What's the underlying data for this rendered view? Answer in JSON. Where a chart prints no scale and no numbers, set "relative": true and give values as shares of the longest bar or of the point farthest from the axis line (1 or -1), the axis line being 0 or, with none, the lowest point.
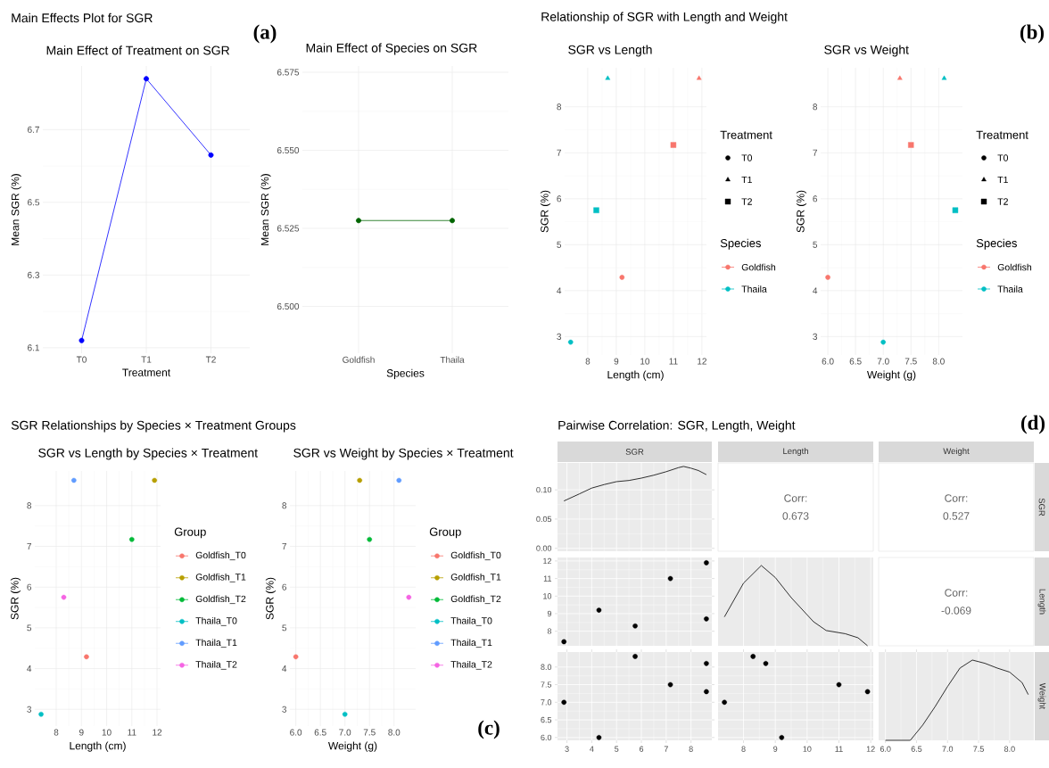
{
  "chart_data": [
    {
      "type": "line",
      "title": "Main Effect of Treatment on SGR",
      "xlabel": "Treatment",
      "ylabel": "Mean SGR (%)",
      "categories": [
        "T0",
        "T1",
        "T2"
      ],
      "values": [
        6.12,
        6.84,
        6.63
      ],
      "color": "#0000ff",
      "marker": "circle",
      "ylim": [
        6.085,
        6.875
      ],
      "yticks": [
        6.1,
        6.3,
        6.5,
        6.7
      ],
      "grid": true,
      "annotations": [
        "Main Effects Plot for SGR",
        "(a)"
      ]
    },
    {
      "type": "line",
      "title": "Main Effect of Species on SGR",
      "xlabel": "Species",
      "ylabel": "Mean SGR (%)",
      "categories": [
        "Goldfish",
        "Thaila"
      ],
      "values": [
        6.5275,
        6.5275
      ],
      "color": "#006400",
      "marker": "circle",
      "ylim": [
        6.485,
        6.577
      ],
      "yticks": [
        {
          "value": 6.5,
          "label": "6.500"
        },
        {
          "value": 6.525,
          "label": "6.525"
        },
        {
          "value": 6.55,
          "label": "6.550"
        },
        {
          "value": 6.575,
          "label": "6.575"
        }
      ],
      "grid": true
    },
    {
      "type": "scatter",
      "title": "SGR vs Length",
      "xlabel": "Length (cm)",
      "ylabel": "SGR (%)",
      "legend": "right",
      "legend_title": "Treatment",
      "series": [
        {
          "marker": "circle",
          "color": "#f8766d",
          "x": [
            9.2
          ],
          "values": [
            4.29
          ]
        },
        {
          "marker": "triangle",
          "color": "#f8766d",
          "x": [
            11.9
          ],
          "values": [
            8.62
          ]
        },
        {
          "marker": "square",
          "color": "#f8766d",
          "x": [
            11.0
          ],
          "values": [
            7.17
          ]
        },
        {
          "marker": "circle",
          "color": "#00bfc4",
          "x": [
            7.4
          ],
          "values": [
            2.88
          ]
        },
        {
          "marker": "triangle",
          "color": "#00bfc4",
          "x": [
            8.7
          ],
          "values": [
            8.62
          ]
        },
        {
          "marker": "square",
          "color": "#00bfc4",
          "x": [
            8.3
          ],
          "values": [
            5.75
          ]
        }
      ],
      "xlim": [
        7.19,
        12.16
      ],
      "xticks": [
        8,
        9,
        10,
        11,
        12
      ],
      "ylim": [
        2.6,
        8.85
      ],
      "yticks": [
        3,
        4,
        5,
        6,
        7,
        8
      ],
      "grid": true,
      "annotations": [
        "Relationship of SGR with Length and Weight",
        "(b)",
        "T0",
        "T1",
        "T2",
        "Species",
        "Goldfish",
        "Thaila"
      ]
    },
    {
      "type": "scatter",
      "title": "SGR vs Weight",
      "xlabel": "Weight (g)",
      "ylabel": "SGR (%)",
      "legend": "right",
      "legend_title": "Treatment",
      "series": [
        {
          "marker": "circle",
          "color": "#f8766d",
          "x": [
            6.0
          ],
          "values": [
            4.29
          ]
        },
        {
          "marker": "triangle",
          "color": "#f8766d",
          "x": [
            7.3
          ],
          "values": [
            8.62
          ]
        },
        {
          "marker": "square",
          "color": "#f8766d",
          "x": [
            7.5
          ],
          "values": [
            7.17
          ]
        },
        {
          "marker": "circle",
          "color": "#00bfc4",
          "x": [
            7.0
          ],
          "values": [
            2.88
          ]
        },
        {
          "marker": "triangle",
          "color": "#00bfc4",
          "x": [
            8.1
          ],
          "values": [
            8.62
          ]
        },
        {
          "marker": "square",
          "color": "#00bfc4",
          "x": [
            8.3
          ],
          "values": [
            5.75
          ]
        }
      ],
      "xlim": [
        5.87,
        8.43
      ],
      "xticks": [
        {
          "value": 6,
          "label": "6.0"
        },
        6.5,
        {
          "value": 7,
          "label": "7.0"
        },
        7.5,
        {
          "value": 8,
          "label": "8.0"
        }
      ],
      "ylim": [
        2.6,
        8.85
      ],
      "yticks": [
        3,
        4,
        5,
        6,
        7,
        8
      ],
      "grid": true,
      "annotations": [
        "T0",
        "T1",
        "T2",
        "Species",
        "Goldfish",
        "Thaila"
      ]
    },
    {
      "type": "scatter",
      "title": "SGR vs Length by Species × Treatment",
      "xlabel": "Length (cm)",
      "ylabel": "SGR (%)",
      "legend": "right",
      "legend_title": "Group",
      "marker": "circle",
      "series": [
        {
          "name": "Goldfish_T0",
          "color": "#f8766d",
          "x": [
            9.2
          ],
          "values": [
            4.29
          ]
        },
        {
          "name": "Goldfish_T1",
          "color": "#b79f00",
          "x": [
            11.9
          ],
          "values": [
            8.62
          ]
        },
        {
          "name": "Goldfish_T2",
          "color": "#00ba38",
          "x": [
            11.0
          ],
          "values": [
            7.17
          ]
        },
        {
          "name": "Thaila_T0",
          "color": "#00bfc4",
          "x": [
            7.4
          ],
          "values": [
            2.88
          ]
        },
        {
          "name": "Thaila_T1",
          "color": "#619cff",
          "x": [
            8.7
          ],
          "values": [
            8.62
          ]
        },
        {
          "name": "Thaila_T2",
          "color": "#f564e3",
          "x": [
            8.3
          ],
          "values": [
            5.75
          ]
        }
      ],
      "xlim": [
        7.15,
        12.14
      ],
      "xticks": [
        8,
        9,
        10,
        11,
        12
      ],
      "ylim": [
        2.59,
        8.85
      ],
      "yticks": [
        3,
        4,
        5,
        6,
        7,
        8
      ],
      "grid": true,
      "annotations": [
        "SGR Relationships by Species × Treatment Groups",
        "(c)"
      ]
    },
    {
      "type": "scatter",
      "title": "SGR vs Weight by Species × Treatment",
      "xlabel": "Weight (g)",
      "ylabel": "SGR (%)",
      "legend": "right",
      "legend_title": "Group",
      "marker": "circle",
      "series": [
        {
          "name": "Goldfish_T0",
          "color": "#f8766d",
          "x": [
            6.0
          ],
          "values": [
            4.29
          ]
        },
        {
          "name": "Goldfish_T1",
          "color": "#b79f00",
          "x": [
            7.3
          ],
          "values": [
            8.62
          ]
        },
        {
          "name": "Goldfish_T2",
          "color": "#00ba38",
          "x": [
            7.5
          ],
          "values": [
            7.17
          ]
        },
        {
          "name": "Thaila_T0",
          "color": "#00bfc4",
          "x": [
            7.0
          ],
          "values": [
            2.88
          ]
        },
        {
          "name": "Thaila_T1",
          "color": "#619cff",
          "x": [
            8.1
          ],
          "values": [
            8.62
          ]
        },
        {
          "name": "Thaila_T2",
          "color": "#f564e3",
          "x": [
            8.3
          ],
          "values": [
            5.75
          ]
        }
      ],
      "xlim": [
        5.88,
        8.44
      ],
      "xticks": [
        {
          "value": 6,
          "label": "6.0"
        },
        6.5,
        {
          "value": 7,
          "label": "7.0"
        },
        7.5,
        {
          "value": 8,
          "label": "8.0"
        }
      ],
      "ylim": [
        2.59,
        8.85
      ],
      "yticks": [
        3,
        4,
        5,
        6,
        7,
        8
      ],
      "grid": true
    },
    {
      "type": "line",
      "title": "SGR",
      "x": [
        2.88,
        3.5,
        4,
        4.5,
        5,
        5.5,
        6,
        6.5,
        7,
        7.5,
        7.7,
        8,
        8.3,
        8.62
      ],
      "values": [
        0.081,
        0.093,
        0.103,
        0.109,
        0.114,
        0.116,
        0.12,
        0.125,
        0.131,
        0.138,
        0.14,
        0.137,
        0.133,
        0.126
      ],
      "color": "#000000",
      "xlim": [
        2.62,
        8.84
      ],
      "xticks": [
        3,
        4,
        5,
        6,
        7,
        8
      ],
      "ylim": [
        -0.005,
        0.146
      ],
      "yticks": [
        {
          "value": 0,
          "label": "0.00"
        },
        0.05,
        {
          "value": 0.1,
          "label": "0.10"
        }
      ],
      "grid": true,
      "tick_labels": "y",
      "annotations": [
        "Pairwise Correlation: SGR, Length, Weight",
        "(d)"
      ]
    },
    {
      "type": "other",
      "title": "Length",
      "annotations": [
        "Corr:",
        "0.673"
      ]
    },
    {
      "type": "other",
      "title": "Weight",
      "y2label": "SGR",
      "annotations": [
        "Corr:",
        "0.527"
      ]
    },
    {
      "type": "scatter",
      "x": [
        4.29,
        8.62,
        7.17,
        2.88,
        8.62,
        5.75
      ],
      "values": [
        9.2,
        11.9,
        11.0,
        7.4,
        8.7,
        8.3
      ],
      "color": "#000000",
      "marker": "circle",
      "xlim": [
        2.62,
        8.84
      ],
      "xticks": [
        3,
        4,
        5,
        6,
        7,
        8
      ],
      "ylim": [
        7.17,
        12.2
      ],
      "yticks": [
        8,
        9,
        10,
        11,
        12
      ],
      "grid": true,
      "tick_labels": "y"
    },
    {
      "type": "line",
      "relative": true,
      "x": [
        7.4,
        8.0,
        8.56,
        9.0,
        9.5,
        10.2,
        10.6,
        11.2,
        11.6,
        11.9
      ],
      "values": [
        0.36,
        0.78,
        1.0,
        0.85,
        0.6,
        0.3,
        0.19,
        0.15,
        0.1,
        0
      ],
      "color": "#000000",
      "xlim": [
        7.2,
        12.08
      ],
      "xticks": [
        8,
        9,
        10,
        11,
        12
      ],
      "grid": "x",
      "tick_labels": false
    },
    {
      "type": "other",
      "y2label": "Length",
      "annotations": [
        "Corr:",
        "-0.069"
      ]
    },
    {
      "type": "scatter",
      "x": [
        4.29,
        8.62,
        7.17,
        2.88,
        8.62,
        5.75
      ],
      "values": [
        6.0,
        7.3,
        7.5,
        7.0,
        8.1,
        8.3
      ],
      "color": "#000000",
      "marker": "circle",
      "xlim": [
        2.62,
        8.84
      ],
      "xticks": [
        3,
        4,
        5,
        6,
        7,
        8
      ],
      "ylim": [
        5.92,
        8.425
      ],
      "yticks": [
        {
          "value": 6,
          "label": "6.0"
        },
        6.5,
        {
          "value": 7,
          "label": "7.0"
        },
        7.5,
        {
          "value": 8,
          "label": "8.0"
        }
      ],
      "grid": true
    },
    {
      "type": "scatter",
      "x": [
        9.2,
        11.9,
        11.0,
        7.4,
        8.7,
        8.3
      ],
      "values": [
        6.0,
        7.3,
        7.5,
        7.0,
        8.1,
        8.3
      ],
      "color": "#000000",
      "marker": "circle",
      "xlim": [
        7.2,
        12.08
      ],
      "xticks": [
        8,
        9,
        10,
        11,
        12
      ],
      "ylim": [
        5.92,
        8.425
      ],
      "yticks": [
        6,
        6.5,
        7,
        7.5,
        8
      ],
      "grid": true,
      "tick_labels": "x"
    },
    {
      "type": "line",
      "relative": true,
      "x": [
        6.0,
        6.4,
        6.6,
        6.8,
        7.0,
        7.2,
        7.4,
        7.6,
        7.8,
        8.0,
        8.2,
        8.3
      ],
      "values": [
        0,
        0,
        0.19,
        0.42,
        0.67,
        0.9,
        1.0,
        0.96,
        0.9,
        0.85,
        0.72,
        0.57
      ],
      "color": "#000000",
      "xlim": [
        5.89,
        8.39
      ],
      "xticks": [
        {
          "value": 6,
          "label": "6.0"
        },
        6.5,
        {
          "value": 7,
          "label": "7.0"
        },
        7.5,
        {
          "value": 8,
          "label": "8.0"
        }
      ],
      "grid": "x",
      "tick_labels": "x",
      "y2label": "Weight"
    }
  ]
}
